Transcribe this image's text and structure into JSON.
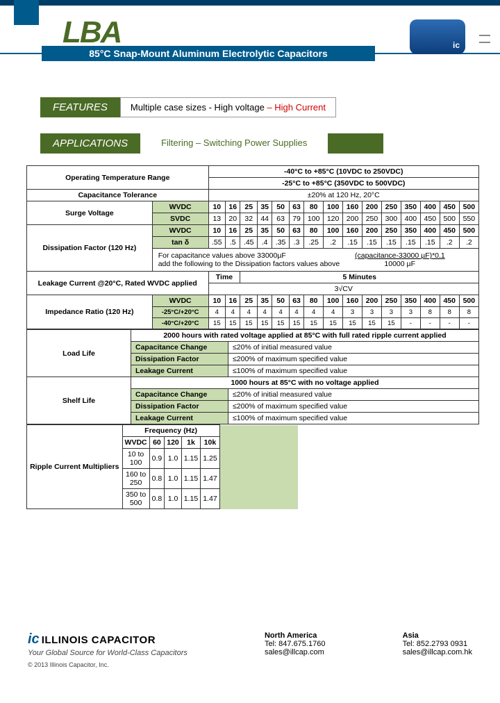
{
  "header": {
    "brand": "LBA",
    "subtitle": "85°C Snap-Mount Aluminum Electrolytic Capacitors"
  },
  "features": {
    "tab": "FEATURES",
    "text1": "Multiple case sizes - High voltage",
    "hi": " – High Current"
  },
  "applications": {
    "tab": "APPLICATIONS",
    "text": "Filtering –  Switching Power Supplies"
  },
  "spec": {
    "otr_label": "Operating Temperature Range",
    "otr_v1": "-40°C to +85°C (10VDC to 250VDC)",
    "otr_v2": "-25°C to +85°C (350VDC to 500VDC)",
    "ct_label": "Capacitance Tolerance",
    "ct_val": "±20% at 120 Hz, 20°C",
    "surge_label": "Surge Voltage",
    "wv": "WVDC",
    "sv": "SVDC",
    "wv_vals": [
      "10",
      "16",
      "25",
      "35",
      "50",
      "63",
      "80",
      "100",
      "160",
      "200",
      "250",
      "350",
      "400",
      "450",
      "500"
    ],
    "sv_vals": [
      "13",
      "20",
      "32",
      "44",
      "63",
      "79",
      "100",
      "120",
      "200",
      "250",
      "300",
      "400",
      "450",
      "500",
      "550"
    ],
    "df_label": "Dissipation Factor (120 Hz)",
    "tan": "tan δ",
    "df_wv": [
      "10",
      "16",
      "25",
      "35",
      "50",
      "63",
      "80",
      "100",
      "160",
      "200",
      "250",
      "350",
      "400",
      "450",
      "500"
    ],
    "df_tan": [
      ".55",
      ".5",
      ".45",
      ".4",
      ".35",
      ".3",
      ".25",
      ".2",
      ".15",
      ".15",
      ".15",
      ".15",
      ".15",
      ".2",
      ".2"
    ],
    "df_note1": "For capacitance values above 33000µF",
    "df_note2": "add the following to the Dissipation factors values above",
    "df_note3": "(capacitance-33000 µF)*0.1",
    "df_note4": "10000 µF",
    "lc_label": "Leakage Current @20°C, Rated WVDC applied",
    "lc_time": "Time",
    "lc_mins": "5 Minutes",
    "lc_formula": "3√CV",
    "imp_label": "Impedance Ratio (120 Hz)",
    "imp_r1": "-25°C/+20°C",
    "imp_r2": "-40°C/+20°C",
    "imp_wv": [
      "10",
      "16",
      "25",
      "35",
      "50",
      "63",
      "80",
      "100",
      "160",
      "200",
      "250",
      "350",
      "400",
      "450",
      "500"
    ],
    "imp_v1": [
      "4",
      "4",
      "4",
      "4",
      "4",
      "4",
      "4",
      "4",
      "3",
      "3",
      "3",
      "3",
      "8",
      "8",
      "8"
    ],
    "imp_v2": [
      "15",
      "15",
      "15",
      "15",
      "15",
      "15",
      "15",
      "15",
      "15",
      "15",
      "15",
      "-",
      "-",
      "-",
      "-"
    ],
    "ll_label": "Load Life",
    "ll_head": "2000 hours  with rated voltage applied at 85°C with full rated ripple current applied",
    "sl_label": "Shelf Life",
    "sl_head": "1000 hours at 85°C with no voltage applied",
    "cc": "Capacitance Change",
    "cc_v": "≤20% of initial measured value",
    "df": "Dissipation Factor",
    "df_v": "≤200% of maximum specified value",
    "lk": "Leakage Current",
    "lk_v": "≤100% of maximum specified value",
    "rc_label": "Ripple Current Multipliers",
    "rc_freq": "Frequency (Hz)",
    "rc_cols": [
      "WVDC",
      "60",
      "120",
      "1k",
      "10k"
    ],
    "rc_rows": [
      [
        "10 to 100",
        "0.9",
        "1.0",
        "1.15",
        "1.25"
      ],
      [
        "160 to 250",
        "0.8",
        "1.0",
        "1.15",
        "1.47"
      ],
      [
        "350 to 500",
        "0.8",
        "1.0",
        "1.15",
        "1.47"
      ]
    ]
  },
  "footer": {
    "logo1": "ic",
    "logo2": "ILLINOIS CAPACITOR",
    "tagline": "Your Global Source for World-Class Capacitors",
    "copyright": "© 2013 Illinois Capacitor, Inc.",
    "na_h": "North America",
    "na_t": "Tel: 847.675.1760",
    "na_e": "sales@illcap.com",
    "as_h": "Asia",
    "as_t": "Tel: 852.2793 0931",
    "as_e": "sales@illcap.com.hk"
  }
}
